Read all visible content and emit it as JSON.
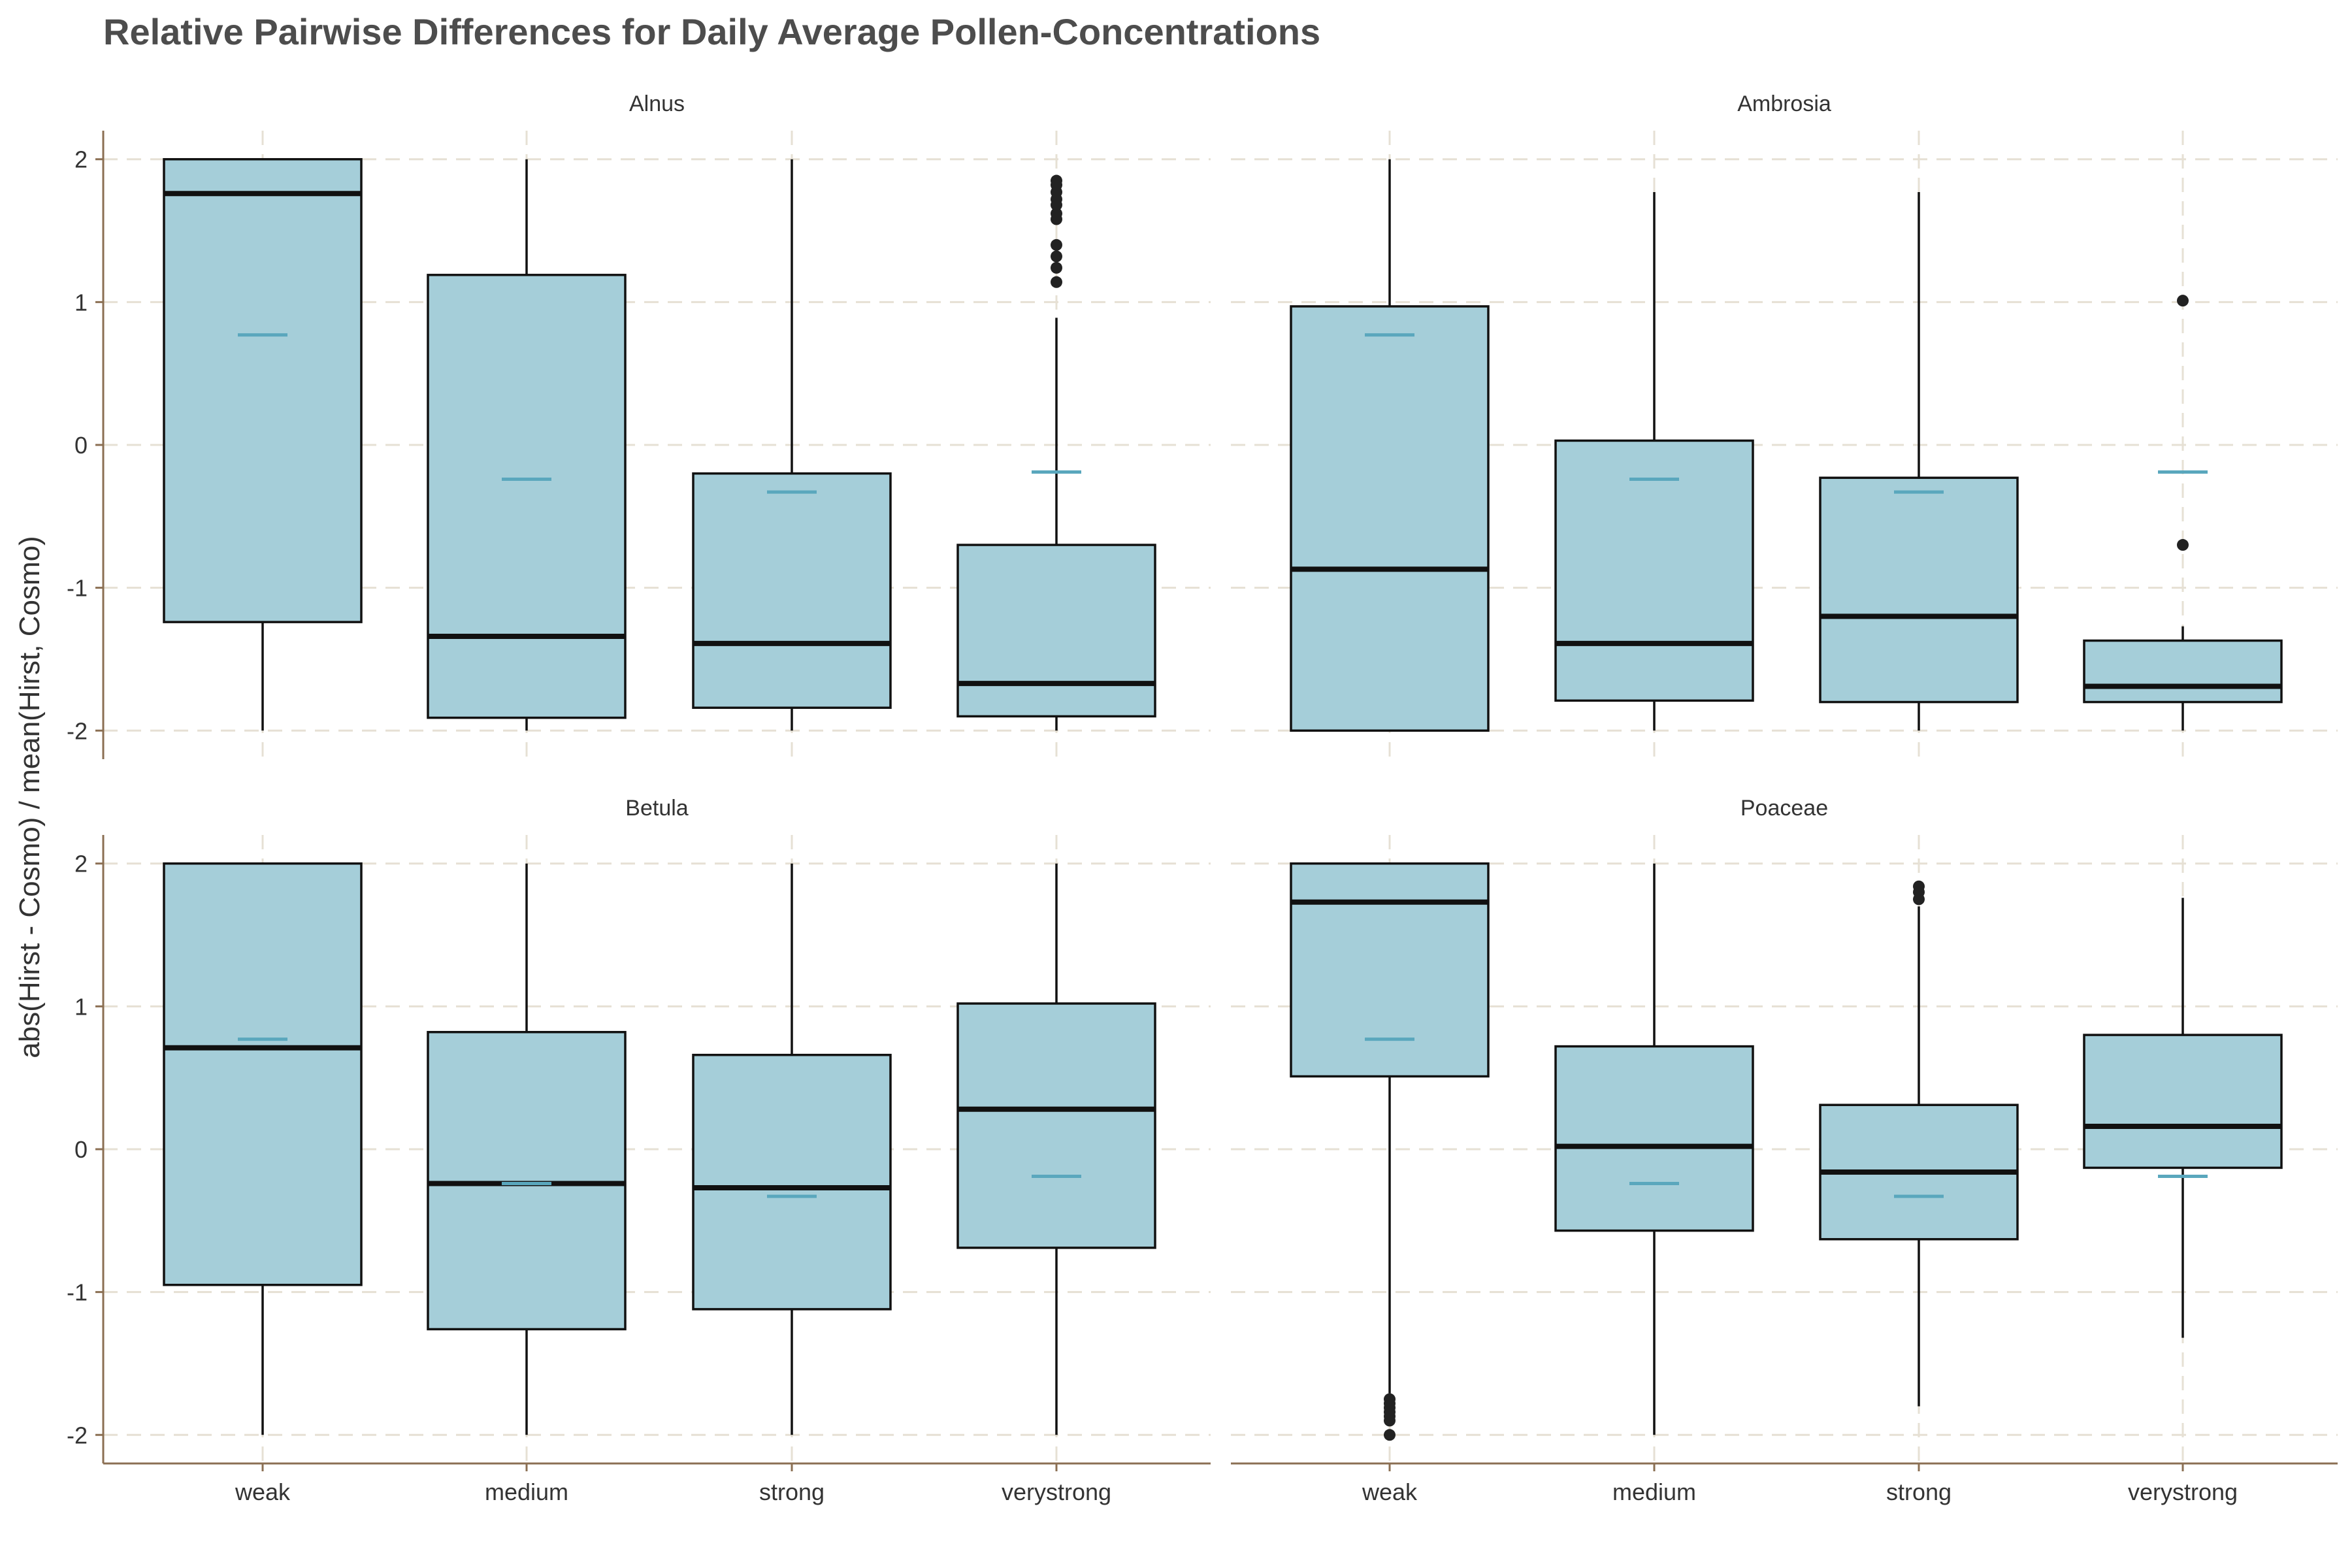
{
  "colors": {
    "box_fill": "#a5ced9",
    "box_stroke": "#111111",
    "mean_mark": "#5aa7bd",
    "outlier": "#222222",
    "grid": "#e6e0d4",
    "axis": "#8b6f53",
    "title": "#4d4d4d"
  },
  "chart_data": {
    "type": "boxplot",
    "title": "Relative Pairwise Differences for Daily Average Pollen-Concentrations",
    "ylabel": "abs(Hirst - Cosmo) / mean(Hirst, Cosmo)",
    "xlabel": "",
    "categories": [
      "weak",
      "medium",
      "strong",
      "verystrong"
    ],
    "ylim": [
      -2.2,
      2.2
    ],
    "yticks": [
      2,
      1,
      0,
      -1,
      -2
    ],
    "ytick_labels": [
      "2",
      "1",
      "0",
      "-1",
      "-2"
    ],
    "grid": true,
    "panels": [
      {
        "name": "Alnus",
        "boxes": [
          {
            "category": "weak",
            "q1": -1.24,
            "median": 1.76,
            "q3": 2.0,
            "whisker_low": -2.0,
            "whisker_high": 2.0,
            "mean": 0.77,
            "outliers": []
          },
          {
            "category": "medium",
            "q1": -1.91,
            "median": -1.34,
            "q3": 1.19,
            "whisker_low": -2.0,
            "whisker_high": 2.0,
            "mean": -0.24,
            "outliers": []
          },
          {
            "category": "strong",
            "q1": -1.84,
            "median": -1.39,
            "q3": -0.2,
            "whisker_low": -2.0,
            "whisker_high": 2.0,
            "mean": -0.33,
            "outliers": []
          },
          {
            "category": "verystrong",
            "q1": -1.9,
            "median": -1.67,
            "q3": -0.7,
            "whisker_low": -2.0,
            "whisker_high": 0.89,
            "mean": -0.19,
            "outliers": [
              1.14,
              1.24,
              1.32,
              1.4,
              1.58,
              1.62,
              1.68,
              1.72,
              1.77,
              1.82,
              1.85
            ]
          }
        ]
      },
      {
        "name": "Ambrosia",
        "boxes": [
          {
            "category": "weak",
            "q1": -2.0,
            "median": -0.87,
            "q3": 0.97,
            "whisker_low": -2.0,
            "whisker_high": 2.0,
            "mean": 0.77,
            "outliers": []
          },
          {
            "category": "medium",
            "q1": -1.79,
            "median": -1.39,
            "q3": 0.03,
            "whisker_low": -2.0,
            "whisker_high": 1.77,
            "mean": -0.24,
            "outliers": []
          },
          {
            "category": "strong",
            "q1": -1.8,
            "median": -1.2,
            "q3": -0.23,
            "whisker_low": -2.0,
            "whisker_high": 1.77,
            "mean": -0.33,
            "outliers": []
          },
          {
            "category": "verystrong",
            "q1": -1.8,
            "median": -1.69,
            "q3": -1.37,
            "whisker_low": -2.0,
            "whisker_high": -1.27,
            "mean": -0.19,
            "outliers": [
              1.01,
              -0.7
            ]
          }
        ]
      },
      {
        "name": "Betula",
        "boxes": [
          {
            "category": "weak",
            "q1": -0.95,
            "median": 0.71,
            "q3": 2.0,
            "whisker_low": -2.0,
            "whisker_high": 2.0,
            "mean": 0.77,
            "outliers": []
          },
          {
            "category": "medium",
            "q1": -1.26,
            "median": -0.24,
            "q3": 0.82,
            "whisker_low": -2.0,
            "whisker_high": 2.0,
            "mean": -0.24,
            "outliers": []
          },
          {
            "category": "strong",
            "q1": -1.12,
            "median": -0.27,
            "q3": 0.66,
            "whisker_low": -2.0,
            "whisker_high": 2.0,
            "mean": -0.33,
            "outliers": []
          },
          {
            "category": "verystrong",
            "q1": -0.69,
            "median": 0.28,
            "q3": 1.02,
            "whisker_low": -2.0,
            "whisker_high": 2.0,
            "mean": -0.19,
            "outliers": []
          }
        ]
      },
      {
        "name": "Poaceae",
        "boxes": [
          {
            "category": "weak",
            "q1": 0.51,
            "median": 1.73,
            "q3": 2.0,
            "whisker_low": -1.71,
            "whisker_high": 2.0,
            "mean": 0.77,
            "outliers": [
              -1.75,
              -1.78,
              -1.81,
              -1.84,
              -1.87,
              -1.9,
              -2.0
            ]
          },
          {
            "category": "medium",
            "q1": -0.57,
            "median": 0.02,
            "q3": 0.72,
            "whisker_low": -2.0,
            "whisker_high": 2.0,
            "mean": -0.24,
            "outliers": []
          },
          {
            "category": "strong",
            "q1": -0.63,
            "median": -0.16,
            "q3": 0.31,
            "whisker_low": -1.8,
            "whisker_high": 1.7,
            "mean": -0.33,
            "outliers": [
              1.75,
              1.8,
              1.84
            ]
          },
          {
            "category": "verystrong",
            "q1": -0.13,
            "median": 0.16,
            "q3": 0.8,
            "whisker_low": -1.32,
            "whisker_high": 1.76,
            "mean": -0.19,
            "outliers": []
          }
        ]
      }
    ]
  }
}
